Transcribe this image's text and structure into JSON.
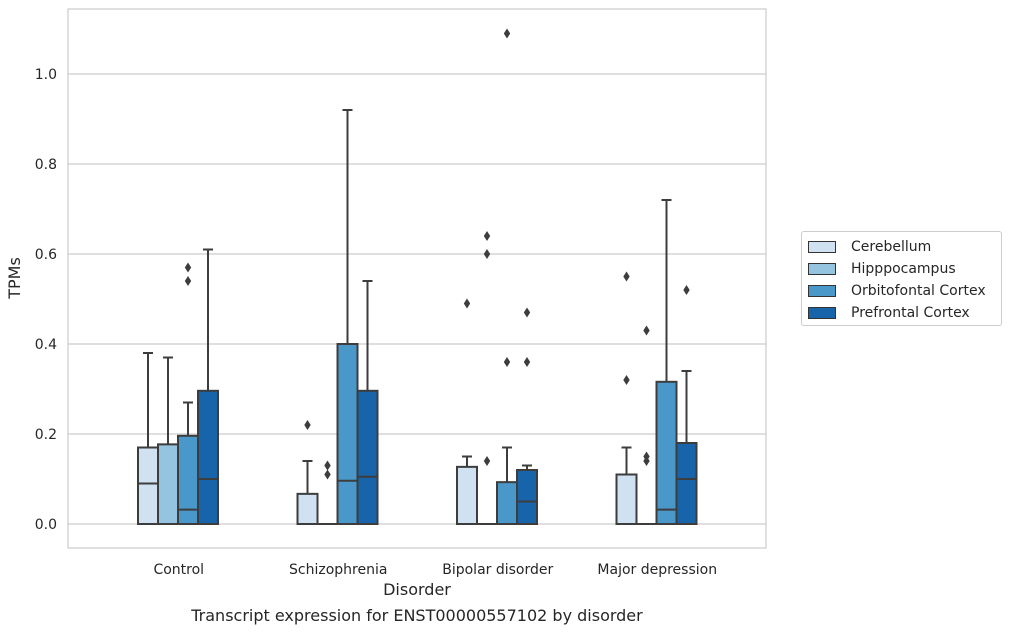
{
  "chart_data": {
    "type": "box",
    "title": "",
    "xlabel": "Disorder",
    "ylabel": "TPMs",
    "caption": "Transcript expression for ENST00000557102 by disorder",
    "categories": [
      "Control",
      "Schizophrenia",
      "Bipolar disorder",
      "Major depression"
    ],
    "ylim": [
      -0.05,
      1.15
    ],
    "yticks": [
      "0.0",
      "0.2",
      "0.4",
      "0.6",
      "0.8",
      "1.0"
    ],
    "grid": true,
    "legend_position": "right",
    "series": [
      {
        "name": "Cerebellum",
        "color": "#d0e1f2",
        "boxes": [
          {
            "q1": 0.0,
            "median": 0.09,
            "q3": 0.17,
            "whislo": 0.0,
            "whishi": 0.38,
            "fliers": []
          },
          {
            "q1": 0.0,
            "median": 0.0,
            "q3": 0.067,
            "whislo": 0.0,
            "whishi": 0.14,
            "fliers": [
              0.22
            ]
          },
          {
            "q1": 0.0,
            "median": 0.0,
            "q3": 0.127,
            "whislo": 0.0,
            "whishi": 0.15,
            "fliers": [
              0.49
            ]
          },
          {
            "q1": 0.0,
            "median": 0.0,
            "q3": 0.11,
            "whislo": 0.0,
            "whishi": 0.17,
            "fliers": [
              0.32,
              0.55
            ]
          }
        ]
      },
      {
        "name": "Hipppocampus",
        "color": "#94c4df",
        "boxes": [
          {
            "q1": 0.0,
            "median": 0.0,
            "q3": 0.177,
            "whislo": 0.0,
            "whishi": 0.37,
            "fliers": []
          },
          {
            "q1": 0.0,
            "median": 0.0,
            "q3": 0.0,
            "whislo": 0.0,
            "whishi": 0.0,
            "fliers": [
              0.11,
              0.13
            ]
          },
          {
            "q1": 0.0,
            "median": 0.0,
            "q3": 0.0,
            "whislo": 0.0,
            "whishi": 0.0,
            "fliers": [
              0.14,
              0.6,
              0.64
            ]
          },
          {
            "q1": 0.0,
            "median": 0.0,
            "q3": 0.0,
            "whislo": 0.0,
            "whishi": 0.0,
            "fliers": [
              0.14,
              0.15,
              0.43
            ]
          }
        ]
      },
      {
        "name": "Orbitofontal Cortex",
        "color": "#4a98c9",
        "boxes": [
          {
            "q1": 0.0,
            "median": 0.032,
            "q3": 0.196,
            "whislo": 0.0,
            "whishi": 0.27,
            "fliers": [
              0.54,
              0.57
            ]
          },
          {
            "q1": 0.0,
            "median": 0.096,
            "q3": 0.4,
            "whislo": 0.0,
            "whishi": 0.92,
            "fliers": []
          },
          {
            "q1": 0.0,
            "median": 0.0,
            "q3": 0.093,
            "whislo": 0.0,
            "whishi": 0.17,
            "fliers": [
              0.36,
              1.09
            ]
          },
          {
            "q1": 0.0,
            "median": 0.032,
            "q3": 0.316,
            "whislo": 0.0,
            "whishi": 0.72,
            "fliers": []
          }
        ]
      },
      {
        "name": "Prefrontal Cortex",
        "color": "#1764ab",
        "boxes": [
          {
            "q1": 0.0,
            "median": 0.1,
            "q3": 0.296,
            "whislo": 0.0,
            "whishi": 0.61,
            "fliers": []
          },
          {
            "q1": 0.0,
            "median": 0.105,
            "q3": 0.296,
            "whislo": 0.0,
            "whishi": 0.54,
            "fliers": []
          },
          {
            "q1": 0.0,
            "median": 0.05,
            "q3": 0.12,
            "whislo": 0.0,
            "whishi": 0.13,
            "fliers": [
              0.36,
              0.47
            ]
          },
          {
            "q1": 0.0,
            "median": 0.1,
            "q3": 0.18,
            "whislo": 0.0,
            "whishi": 0.34,
            "fliers": [
              0.52
            ]
          }
        ]
      }
    ]
  }
}
